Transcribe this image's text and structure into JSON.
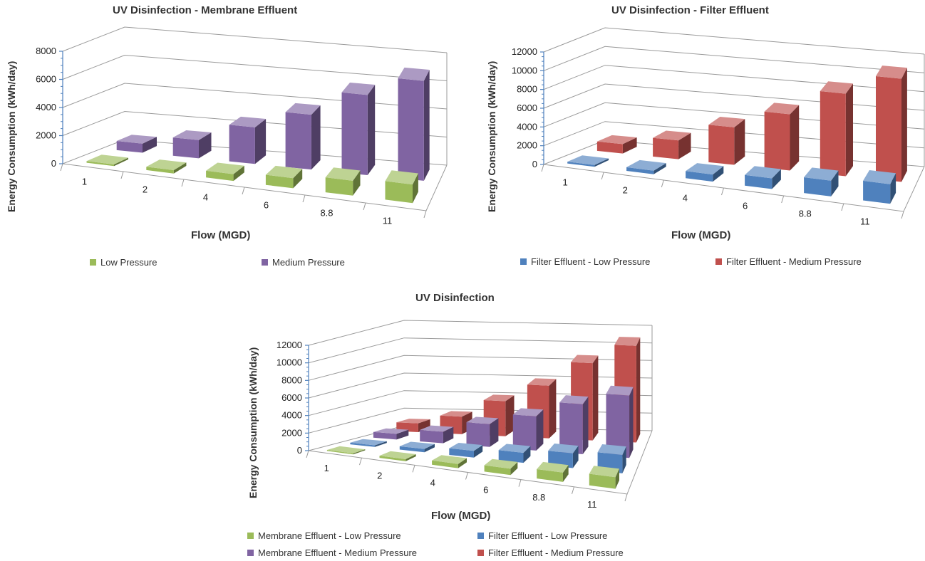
{
  "chart_data": [
    {
      "type": "bar",
      "title": "UV Disinfection - Membrane Effluent",
      "xlabel": "Flow (MGD)",
      "ylabel": "Energy Consumption (kWh/day)",
      "categories": [
        "1",
        "2",
        "4",
        "6",
        "8.8",
        "11"
      ],
      "ylim": [
        0,
        8000
      ],
      "yticks": [
        "0",
        "2000",
        "4000",
        "6000",
        "8000"
      ],
      "grid": true,
      "legend": "bottom",
      "series": [
        {
          "name": "Low Pressure",
          "color": "#9bbb59",
          "values": [
            120,
            240,
            480,
            720,
            1060,
            1320
          ]
        },
        {
          "name": "Medium Pressure",
          "color": "#8064a2",
          "values": [
            650,
            1300,
            2600,
            3900,
            5700,
            7100
          ]
        }
      ]
    },
    {
      "type": "bar",
      "title": "UV Disinfection - Filter Effluent",
      "xlabel": "Flow (MGD)",
      "ylabel": "Energy Consumption (kWh/day)",
      "categories": [
        "1",
        "2",
        "4",
        "6",
        "8.8",
        "11"
      ],
      "ylim": [
        0,
        12000
      ],
      "yticks": [
        "0",
        "2000",
        "4000",
        "6000",
        "8000",
        "10000",
        "12000"
      ],
      "grid": true,
      "legend": "bottom",
      "series": [
        {
          "name": "Filter Effluent - Low Pressure",
          "color": "#4f81bd",
          "values": [
            190,
            380,
            760,
            1140,
            1680,
            2100
          ]
        },
        {
          "name": "Filter Effluent - Medium Pressure",
          "color": "#c0504d",
          "values": [
            1000,
            2000,
            4000,
            6000,
            8800,
            11000
          ]
        }
      ]
    },
    {
      "type": "bar",
      "title": "UV Disinfection",
      "xlabel": "Flow (MGD)",
      "ylabel": "Energy Consumption (kWh/day)",
      "categories": [
        "1",
        "2",
        "4",
        "6",
        "8.8",
        "11"
      ],
      "ylim": [
        0,
        12000
      ],
      "yticks": [
        "0",
        "2000",
        "4000",
        "6000",
        "8000",
        "10000",
        "12000"
      ],
      "grid": true,
      "legend": "bottom",
      "series": [
        {
          "name": "Membrane Effluent - Low Pressure",
          "color": "#9bbb59",
          "values": [
            120,
            240,
            480,
            720,
            1060,
            1320
          ]
        },
        {
          "name": "Filter Effluent - Low Pressure",
          "color": "#4f81bd",
          "values": [
            190,
            380,
            760,
            1140,
            1680,
            2100
          ]
        },
        {
          "name": "Membrane Effluent - Medium Pressure",
          "color": "#8064a2",
          "values": [
            650,
            1300,
            2600,
            3900,
            5700,
            7100
          ]
        },
        {
          "name": "Filter Effluent - Medium Pressure",
          "color": "#c0504d",
          "values": [
            1000,
            2000,
            4000,
            6000,
            8800,
            11000
          ]
        }
      ]
    }
  ]
}
